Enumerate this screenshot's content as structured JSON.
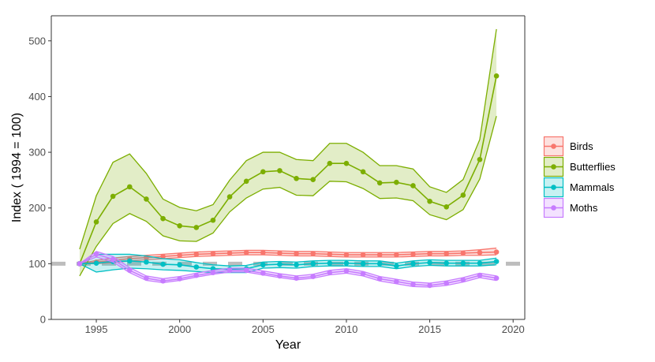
{
  "chart_data": {
    "type": "line",
    "title": "",
    "xlabel": "Year",
    "ylabel": "Index ( 1994 = 100)",
    "xlim": [
      1992.3,
      2020.7
    ],
    "ylim": [
      0,
      545
    ],
    "x_ticks": [
      1995,
      2000,
      2005,
      2010,
      2015,
      2020
    ],
    "y_ticks": [
      0,
      100,
      200,
      300,
      400,
      500
    ],
    "reference_line": {
      "y": 100,
      "style": "dashed",
      "color": "#bdbdbd"
    },
    "grid": false,
    "legend_position": "right",
    "x": [
      1994,
      1995,
      1996,
      1997,
      1998,
      1999,
      2000,
      2001,
      2002,
      2003,
      2004,
      2005,
      2006,
      2007,
      2008,
      2009,
      2010,
      2011,
      2012,
      2013,
      2014,
      2015,
      2016,
      2017,
      2018,
      2019
    ],
    "series": [
      {
        "name": "Birds",
        "color": "#F8766D",
        "values": [
          100,
          103,
          106,
          109,
          111,
          113,
          115,
          117,
          118,
          119,
          120,
          120,
          119,
          118,
          118,
          117,
          116,
          116,
          116,
          116,
          117,
          118,
          118,
          119,
          120,
          121
        ],
        "lower": [
          100,
          100,
          102,
          105,
          107,
          109,
          111,
          113,
          114,
          115,
          116,
          116,
          115,
          114,
          114,
          113,
          112,
          112,
          112,
          112,
          113,
          114,
          114,
          115,
          115,
          116
        ],
        "upper": [
          100,
          106,
          110,
          113,
          115,
          117,
          119,
          121,
          122,
          123,
          124,
          124,
          123,
          122,
          122,
          121,
          120,
          120,
          120,
          120,
          121,
          122,
          122,
          123,
          125,
          128
        ]
      },
      {
        "name": "Butterflies",
        "color": "#7CAE00",
        "values": [
          100,
          175,
          221,
          238,
          216,
          181,
          168,
          165,
          178,
          220,
          248,
          265,
          267,
          253,
          251,
          280,
          280,
          265,
          245,
          246,
          240,
          212,
          202,
          223,
          287,
          437
        ],
        "lower": [
          78,
          131,
          172,
          190,
          176,
          150,
          141,
          140,
          155,
          193,
          218,
          234,
          237,
          223,
          222,
          248,
          247,
          235,
          217,
          218,
          213,
          188,
          179,
          197,
          252,
          365
        ],
        "upper": [
          126,
          222,
          282,
          297,
          262,
          216,
          201,
          195,
          206,
          250,
          285,
          300,
          300,
          287,
          285,
          316,
          316,
          300,
          276,
          276,
          270,
          238,
          228,
          251,
          323,
          521
        ]
      },
      {
        "name": "Mammals",
        "color": "#00BFC4",
        "values": [
          100,
          101,
          104,
          105,
          103,
          99,
          98,
          94,
          91,
          90,
          91,
          98,
          99,
          98,
          100,
          101,
          101,
          100,
          100,
          96,
          100,
          102,
          101,
          101,
          101,
          104
        ],
        "lower": [
          100,
          85,
          89,
          92,
          91,
          89,
          88,
          86,
          84,
          84,
          84,
          92,
          93,
          92,
          95,
          96,
          96,
          95,
          95,
          91,
          95,
          97,
          96,
          96,
          96,
          98
        ],
        "upper": [
          100,
          117,
          117,
          117,
          114,
          109,
          107,
          102,
          98,
          96,
          97,
          103,
          104,
          103,
          105,
          106,
          106,
          105,
          105,
          101,
          105,
          107,
          106,
          106,
          106,
          110
        ]
      },
      {
        "name": "Moths",
        "color": "#C77CFF",
        "values": [
          100,
          117,
          108,
          88,
          74,
          69,
          73,
          79,
          84,
          88,
          88,
          83,
          78,
          74,
          77,
          84,
          87,
          82,
          73,
          68,
          63,
          61,
          65,
          71,
          79,
          74
        ],
        "lower": [
          100,
          112,
          103,
          84,
          70,
          66,
          70,
          76,
          81,
          85,
          85,
          80,
          75,
          71,
          74,
          80,
          83,
          78,
          69,
          64,
          59,
          58,
          61,
          67,
          75,
          70
        ],
        "upper": [
          100,
          122,
          113,
          93,
          78,
          73,
          77,
          83,
          88,
          92,
          92,
          87,
          82,
          78,
          81,
          88,
          91,
          86,
          77,
          72,
          67,
          65,
          69,
          75,
          83,
          78
        ]
      }
    ]
  }
}
